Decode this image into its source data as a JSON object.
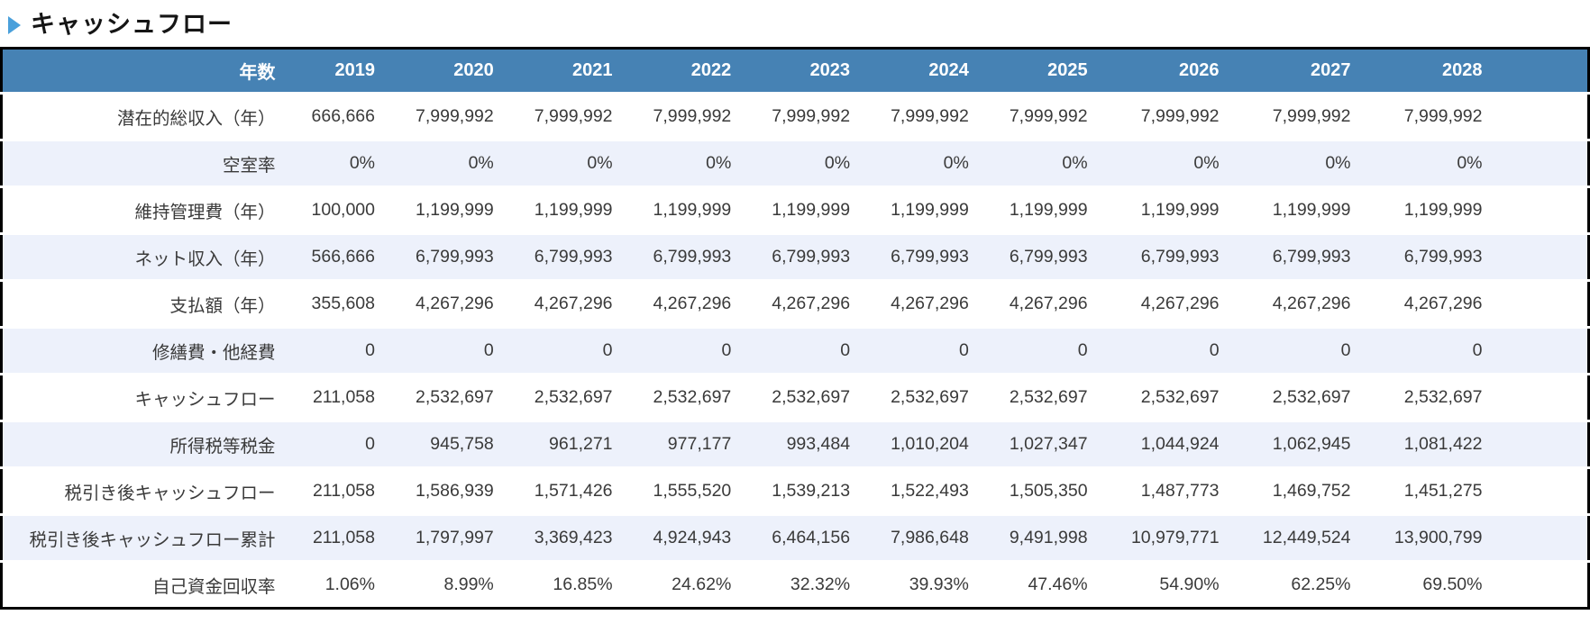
{
  "title": "キャッシュフロー",
  "icons": {
    "section_marker": "play-triangle-right"
  },
  "colors": {
    "header_bg": "#4682B4",
    "header_text": "#FFFFFF",
    "stripe_bg": "#EDF1FB",
    "row_bg": "#FFFFFF",
    "table_border": "#000000",
    "body_text": "#3A3A3A",
    "accent_triangle": "#4AA0DB"
  },
  "table": {
    "year_header_label": "年数",
    "years": [
      "2019",
      "2020",
      "2021",
      "2022",
      "2023",
      "2024",
      "2025",
      "2026",
      "2027",
      "2028"
    ],
    "rows": [
      {
        "label": "潜在的総収入（年）",
        "values": [
          "666,666",
          "7,999,992",
          "7,999,992",
          "7,999,992",
          "7,999,992",
          "7,999,992",
          "7,999,992",
          "7,999,992",
          "7,999,992",
          "7,999,992"
        ]
      },
      {
        "label": "空室率",
        "values": [
          "0%",
          "0%",
          "0%",
          "0%",
          "0%",
          "0%",
          "0%",
          "0%",
          "0%",
          "0%"
        ]
      },
      {
        "label": "維持管理費（年）",
        "values": [
          "100,000",
          "1,199,999",
          "1,199,999",
          "1,199,999",
          "1,199,999",
          "1,199,999",
          "1,199,999",
          "1,199,999",
          "1,199,999",
          "1,199,999"
        ]
      },
      {
        "label": "ネット収入（年）",
        "values": [
          "566,666",
          "6,799,993",
          "6,799,993",
          "6,799,993",
          "6,799,993",
          "6,799,993",
          "6,799,993",
          "6,799,993",
          "6,799,993",
          "6,799,993"
        ]
      },
      {
        "label": "支払額（年）",
        "values": [
          "355,608",
          "4,267,296",
          "4,267,296",
          "4,267,296",
          "4,267,296",
          "4,267,296",
          "4,267,296",
          "4,267,296",
          "4,267,296",
          "4,267,296"
        ]
      },
      {
        "label": "修繕費・他経費",
        "values": [
          "0",
          "0",
          "0",
          "0",
          "0",
          "0",
          "0",
          "0",
          "0",
          "0"
        ]
      },
      {
        "label": "キャッシュフロー",
        "values": [
          "211,058",
          "2,532,697",
          "2,532,697",
          "2,532,697",
          "2,532,697",
          "2,532,697",
          "2,532,697",
          "2,532,697",
          "2,532,697",
          "2,532,697"
        ]
      },
      {
        "label": "所得税等税金",
        "values": [
          "0",
          "945,758",
          "961,271",
          "977,177",
          "993,484",
          "1,010,204",
          "1,027,347",
          "1,044,924",
          "1,062,945",
          "1,081,422"
        ]
      },
      {
        "label": "税引き後キャッシュフロー",
        "values": [
          "211,058",
          "1,586,939",
          "1,571,426",
          "1,555,520",
          "1,539,213",
          "1,522,493",
          "1,505,350",
          "1,487,773",
          "1,469,752",
          "1,451,275"
        ]
      },
      {
        "label": "税引き後キャッシュフロー累計",
        "values": [
          "211,058",
          "1,797,997",
          "3,369,423",
          "4,924,943",
          "6,464,156",
          "7,986,648",
          "9,491,998",
          "10,979,771",
          "12,449,524",
          "13,900,799"
        ]
      },
      {
        "label": "自己資金回収率",
        "values": [
          "1.06%",
          "8.99%",
          "16.85%",
          "24.62%",
          "32.32%",
          "39.93%",
          "47.46%",
          "54.90%",
          "62.25%",
          "69.50%"
        ]
      }
    ]
  }
}
